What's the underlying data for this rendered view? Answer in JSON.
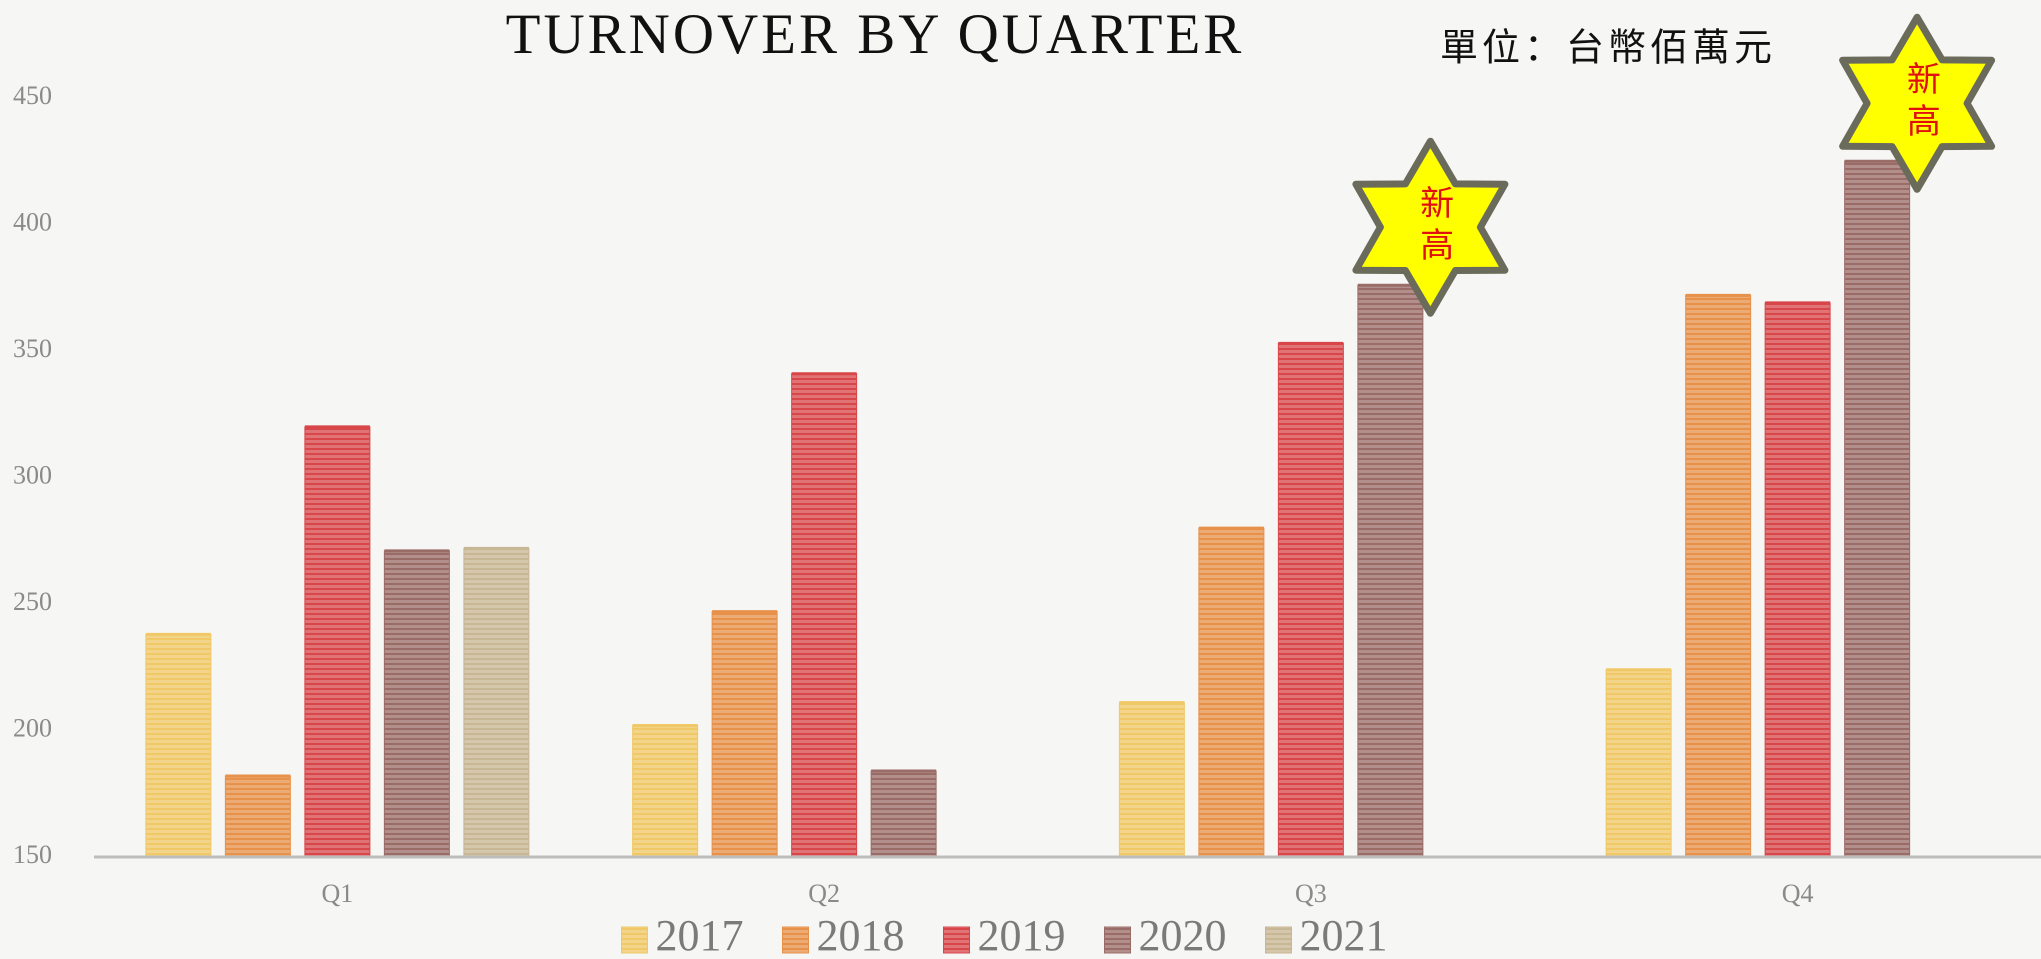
{
  "chart_data": {
    "type": "bar",
    "title": "TURNOVER BY QUARTER",
    "subtitle": "單位：台幣佰萬元",
    "categories": [
      "Q1",
      "Q2",
      "Q3",
      "Q4"
    ],
    "series": [
      {
        "name": "2017",
        "color": "#f0c866",
        "values": [
          238,
          202,
          211,
          224
        ]
      },
      {
        "name": "2018",
        "color": "#e8914a",
        "values": [
          182,
          247,
          280,
          372
        ]
      },
      {
        "name": "2019",
        "color": "#d8464a",
        "values": [
          320,
          341,
          353,
          369
        ]
      },
      {
        "name": "2020",
        "color": "#9a6c68",
        "values": [
          271,
          184,
          376,
          425
        ]
      },
      {
        "name": "2021",
        "color": "#c8b794",
        "values": [
          272,
          null,
          null,
          null
        ]
      }
    ],
    "ylim": [
      150,
      450
    ],
    "yticks": [
      150,
      200,
      250,
      300,
      350,
      400,
      450
    ],
    "grid": false,
    "legend": "bottom",
    "annotations": [
      {
        "text": "新高",
        "category": "Q3",
        "series": "2020"
      },
      {
        "text": "新高",
        "category": "Q4",
        "series": "2020"
      }
    ]
  }
}
